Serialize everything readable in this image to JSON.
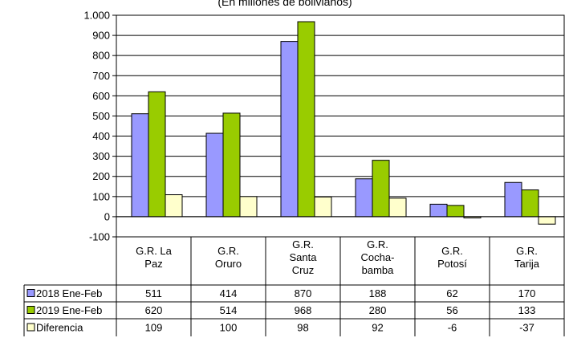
{
  "chart_data": {
    "type": "bar",
    "subtitle": "(En millones de bolivianos)",
    "categories": [
      [
        "G.R. La",
        "Paz"
      ],
      [
        "G.R.",
        "Oruro"
      ],
      [
        "G.R.",
        "Santa",
        "Cruz"
      ],
      [
        "G.R.",
        "Cocha-",
        "bamba"
      ],
      [
        "G.R.",
        "Potosí"
      ],
      [
        "G.R.",
        "Tarija"
      ]
    ],
    "series": [
      {
        "name": "2018 Ene-Feb",
        "color": "#9999FF",
        "values": [
          511,
          414,
          870,
          188,
          62,
          170
        ]
      },
      {
        "name": "2019 Ene-Feb",
        "color": "#99CC00",
        "values": [
          620,
          514,
          968,
          280,
          56,
          133
        ]
      },
      {
        "name": "Diferencia",
        "color": "#FFFFCC",
        "values": [
          109,
          100,
          98,
          92,
          -6,
          -37
        ]
      }
    ],
    "ylim": [
      -100,
      1000
    ],
    "yticks": [
      {
        "value": -100,
        "label": "-100"
      },
      {
        "value": 0,
        "label": "0"
      },
      {
        "value": 100,
        "label": "100"
      },
      {
        "value": 200,
        "label": "200"
      },
      {
        "value": 300,
        "label": "300"
      },
      {
        "value": 400,
        "label": "400"
      },
      {
        "value": 500,
        "label": "500"
      },
      {
        "value": 600,
        "label": "600"
      },
      {
        "value": 700,
        "label": "700"
      },
      {
        "value": 800,
        "label": "800"
      },
      {
        "value": 900,
        "label": "900"
      },
      {
        "value": 1000,
        "label": "1.000"
      }
    ],
    "grid": true,
    "legend": "data-table-left"
  }
}
